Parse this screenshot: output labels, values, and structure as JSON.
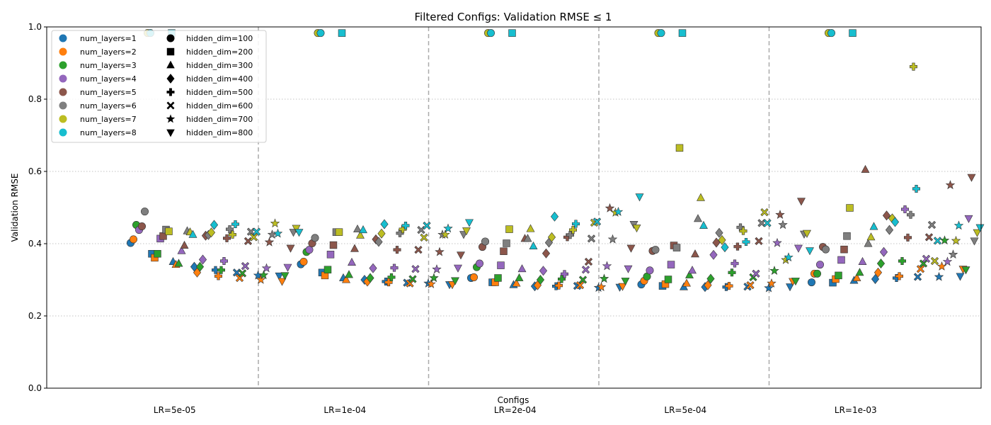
{
  "chart_data": {
    "type": "scatter",
    "title": "Filtered Configs: Validation RMSE ≤ 1",
    "xlabel": "Configs",
    "ylabel": "Validation RMSE",
    "ylim": [
      0,
      1
    ],
    "yticks": [
      "0.0",
      "0.2",
      "0.4",
      "0.6",
      "0.8",
      "1.0"
    ],
    "grid": "horizontal-dotted",
    "groups": [
      "LR=5e-05",
      "LR=1e-04",
      "LR=2e-04",
      "LR=5e-04",
      "LR=1e-03"
    ],
    "legend_position": "upper-left",
    "color_legend": [
      {
        "label": "num_layers=1",
        "color": "#1f77b4"
      },
      {
        "label": "num_layers=2",
        "color": "#ff7f0e"
      },
      {
        "label": "num_layers=3",
        "color": "#2ca02c"
      },
      {
        "label": "num_layers=4",
        "color": "#9467bd"
      },
      {
        "label": "num_layers=5",
        "color": "#8c564b"
      },
      {
        "label": "num_layers=6",
        "color": "#7f7f7f"
      },
      {
        "label": "num_layers=7",
        "color": "#bcbd22"
      },
      {
        "label": "num_layers=8",
        "color": "#17becf"
      }
    ],
    "marker_legend": [
      {
        "label": "hidden_dim=100",
        "marker": "circle"
      },
      {
        "label": "hidden_dim=200",
        "marker": "square"
      },
      {
        "label": "hidden_dim=300",
        "marker": "triangle-up"
      },
      {
        "label": "hidden_dim=400",
        "marker": "diamond"
      },
      {
        "label": "hidden_dim=500",
        "marker": "plus"
      },
      {
        "label": "hidden_dim=600",
        "marker": "x"
      },
      {
        "label": "hidden_dim=700",
        "marker": "star"
      },
      {
        "label": "hidden_dim=800",
        "marker": "triangle-down"
      }
    ],
    "markers_order": [
      "circle",
      "square",
      "triangle-up",
      "diamond",
      "plus",
      "x",
      "star",
      "triangle-down"
    ],
    "points": [
      {
        "lr": 0,
        "hidden": 0,
        "values": [
          0.402,
          0.412,
          0.452,
          0.438,
          0.448,
          0.489,
          0.983,
          0.983
        ]
      },
      {
        "lr": 0,
        "hidden": 1,
        "values": [
          0.372,
          0.361,
          0.372,
          0.414,
          0.421,
          0.439,
          0.434,
          0.983
        ]
      },
      {
        "lr": 0,
        "hidden": 2,
        "values": [
          0.35,
          0.342,
          0.345,
          0.38,
          0.395,
          0.435,
          0.432,
          0.425
        ]
      },
      {
        "lr": 0,
        "hidden": 3,
        "values": [
          0.336,
          0.32,
          0.336,
          0.356,
          0.422,
          0.424,
          0.431,
          0.452
        ]
      },
      {
        "lr": 0,
        "hidden": 4,
        "values": [
          0.327,
          0.31,
          0.327,
          0.352,
          0.415,
          0.44,
          0.425,
          0.454
        ]
      },
      {
        "lr": 0,
        "hidden": 5,
        "values": [
          0.32,
          0.305,
          0.318,
          0.338,
          0.407,
          0.433,
          0.418,
          0.433
        ]
      },
      {
        "lr": 0,
        "hidden": 6,
        "values": [
          0.312,
          0.3,
          0.313,
          0.332,
          0.404,
          0.425,
          0.456,
          0.428
        ]
      },
      {
        "lr": 0,
        "hidden": 7,
        "values": [
          0.311,
          0.296,
          0.312,
          0.335,
          0.388,
          0.432,
          0.443,
          0.432
        ]
      },
      {
        "lr": 1,
        "hidden": 0,
        "values": [
          0.343,
          0.35,
          0.377,
          0.383,
          0.401,
          0.416,
          0.983,
          0.983
        ]
      },
      {
        "lr": 1,
        "hidden": 1,
        "values": [
          0.32,
          0.312,
          0.328,
          0.37,
          0.396,
          0.432,
          0.432,
          0.983
        ]
      },
      {
        "lr": 1,
        "hidden": 2,
        "values": [
          0.305,
          0.3,
          0.314,
          0.348,
          0.386,
          0.44,
          0.423,
          0.438
        ]
      },
      {
        "lr": 1,
        "hidden": 3,
        "values": [
          0.3,
          0.295,
          0.305,
          0.332,
          0.412,
          0.405,
          0.428,
          0.454
        ]
      },
      {
        "lr": 1,
        "hidden": 4,
        "values": [
          0.295,
          0.293,
          0.307,
          0.333,
          0.383,
          0.429,
          0.44,
          0.45
        ]
      },
      {
        "lr": 1,
        "hidden": 5,
        "values": [
          0.292,
          0.29,
          0.302,
          0.33,
          0.383,
          0.438,
          0.417,
          0.45
        ]
      },
      {
        "lr": 1,
        "hidden": 6,
        "values": [
          0.29,
          0.288,
          0.305,
          0.329,
          0.377,
          0.425,
          0.425,
          0.442
        ]
      },
      {
        "lr": 1,
        "hidden": 7,
        "values": [
          0.287,
          0.287,
          0.298,
          0.333,
          0.369,
          0.426,
          0.436,
          0.459
        ]
      },
      {
        "lr": 2,
        "hidden": 0,
        "values": [
          0.305,
          0.307,
          0.335,
          0.345,
          0.391,
          0.406,
          0.983,
          0.983
        ]
      },
      {
        "lr": 2,
        "hidden": 1,
        "values": [
          0.293,
          0.293,
          0.305,
          0.34,
          0.379,
          0.401,
          0.44,
          0.983
        ]
      },
      {
        "lr": 2,
        "hidden": 2,
        "values": [
          0.286,
          0.29,
          0.305,
          0.33,
          0.414,
          0.414,
          0.441,
          0.393
        ]
      },
      {
        "lr": 2,
        "hidden": 3,
        "values": [
          0.282,
          0.285,
          0.3,
          0.325,
          0.373,
          0.403,
          0.418,
          0.475
        ]
      },
      {
        "lr": 2,
        "hidden": 4,
        "values": [
          0.282,
          0.284,
          0.302,
          0.316,
          0.418,
          0.424,
          0.438,
          0.455
        ]
      },
      {
        "lr": 2,
        "hidden": 5,
        "values": [
          0.283,
          0.285,
          0.3,
          0.328,
          0.35,
          0.414,
          0.458,
          0.461
        ]
      },
      {
        "lr": 2,
        "hidden": 6,
        "values": [
          0.278,
          0.28,
          0.303,
          0.338,
          0.498,
          0.412,
          0.486,
          0.488
        ]
      },
      {
        "lr": 2,
        "hidden": 7,
        "values": [
          0.28,
          0.282,
          0.297,
          0.331,
          0.388,
          0.454,
          0.444,
          0.53
        ]
      },
      {
        "lr": 3,
        "hidden": 0,
        "values": [
          0.287,
          0.297,
          0.309,
          0.326,
          0.38,
          0.383,
          0.983,
          0.983
        ]
      },
      {
        "lr": 3,
        "hidden": 1,
        "values": [
          0.283,
          0.288,
          0.301,
          0.342,
          0.395,
          0.389,
          0.665,
          0.983
        ]
      },
      {
        "lr": 3,
        "hidden": 2,
        "values": [
          0.28,
          0.29,
          0.313,
          0.326,
          0.371,
          0.469,
          0.527,
          0.45
        ]
      },
      {
        "lr": 3,
        "hidden": 3,
        "values": [
          0.28,
          0.285,
          0.303,
          0.369,
          0.403,
          0.43,
          0.41,
          0.39
        ]
      },
      {
        "lr": 3,
        "hidden": 4,
        "values": [
          0.28,
          0.283,
          0.32,
          0.345,
          0.392,
          0.445,
          0.435,
          0.405
        ]
      },
      {
        "lr": 3,
        "hidden": 5,
        "values": [
          0.281,
          0.285,
          0.307,
          0.317,
          0.407,
          0.457,
          0.487,
          0.457
        ]
      },
      {
        "lr": 3,
        "hidden": 6,
        "values": [
          0.277,
          0.29,
          0.325,
          0.402,
          0.48,
          0.452,
          0.355,
          0.362
        ]
      },
      {
        "lr": 3,
        "hidden": 7,
        "values": [
          0.281,
          0.296,
          0.297,
          0.388,
          0.518,
          0.427,
          0.429,
          0.381
        ]
      },
      {
        "lr": 4,
        "hidden": 0,
        "values": [
          0.293,
          0.317,
          0.317,
          0.342,
          0.391,
          0.384,
          0.983,
          0.983
        ]
      },
      {
        "lr": 4,
        "hidden": 1,
        "values": [
          0.292,
          0.302,
          0.312,
          0.355,
          0.384,
          0.421,
          0.499,
          0.983
        ]
      },
      {
        "lr": 4,
        "hidden": 2,
        "values": [
          0.298,
          0.305,
          0.32,
          0.35,
          0.605,
          0.4,
          0.418,
          0.447
        ]
      },
      {
        "lr": 4,
        "hidden": 3,
        "values": [
          0.302,
          0.32,
          0.345,
          0.377,
          0.478,
          0.438,
          0.47,
          0.46
        ]
      },
      {
        "lr": 4,
        "hidden": 4,
        "values": [
          0.305,
          0.31,
          0.352,
          0.495,
          0.417,
          0.48,
          0.89,
          0.552
        ]
      },
      {
        "lr": 4,
        "hidden": 5,
        "values": [
          0.308,
          0.33,
          0.345,
          0.358,
          0.418,
          0.452,
          0.352,
          0.408
        ]
      },
      {
        "lr": 4,
        "hidden": 6,
        "values": [
          0.308,
          0.337,
          0.409,
          0.35,
          0.562,
          0.37,
          0.408,
          0.45
        ]
      },
      {
        "lr": 4,
        "hidden": 7,
        "values": [
          0.31,
          0.33,
          0.328,
          0.47,
          0.584,
          0.408,
          0.431,
          0.445
        ]
      }
    ]
  }
}
